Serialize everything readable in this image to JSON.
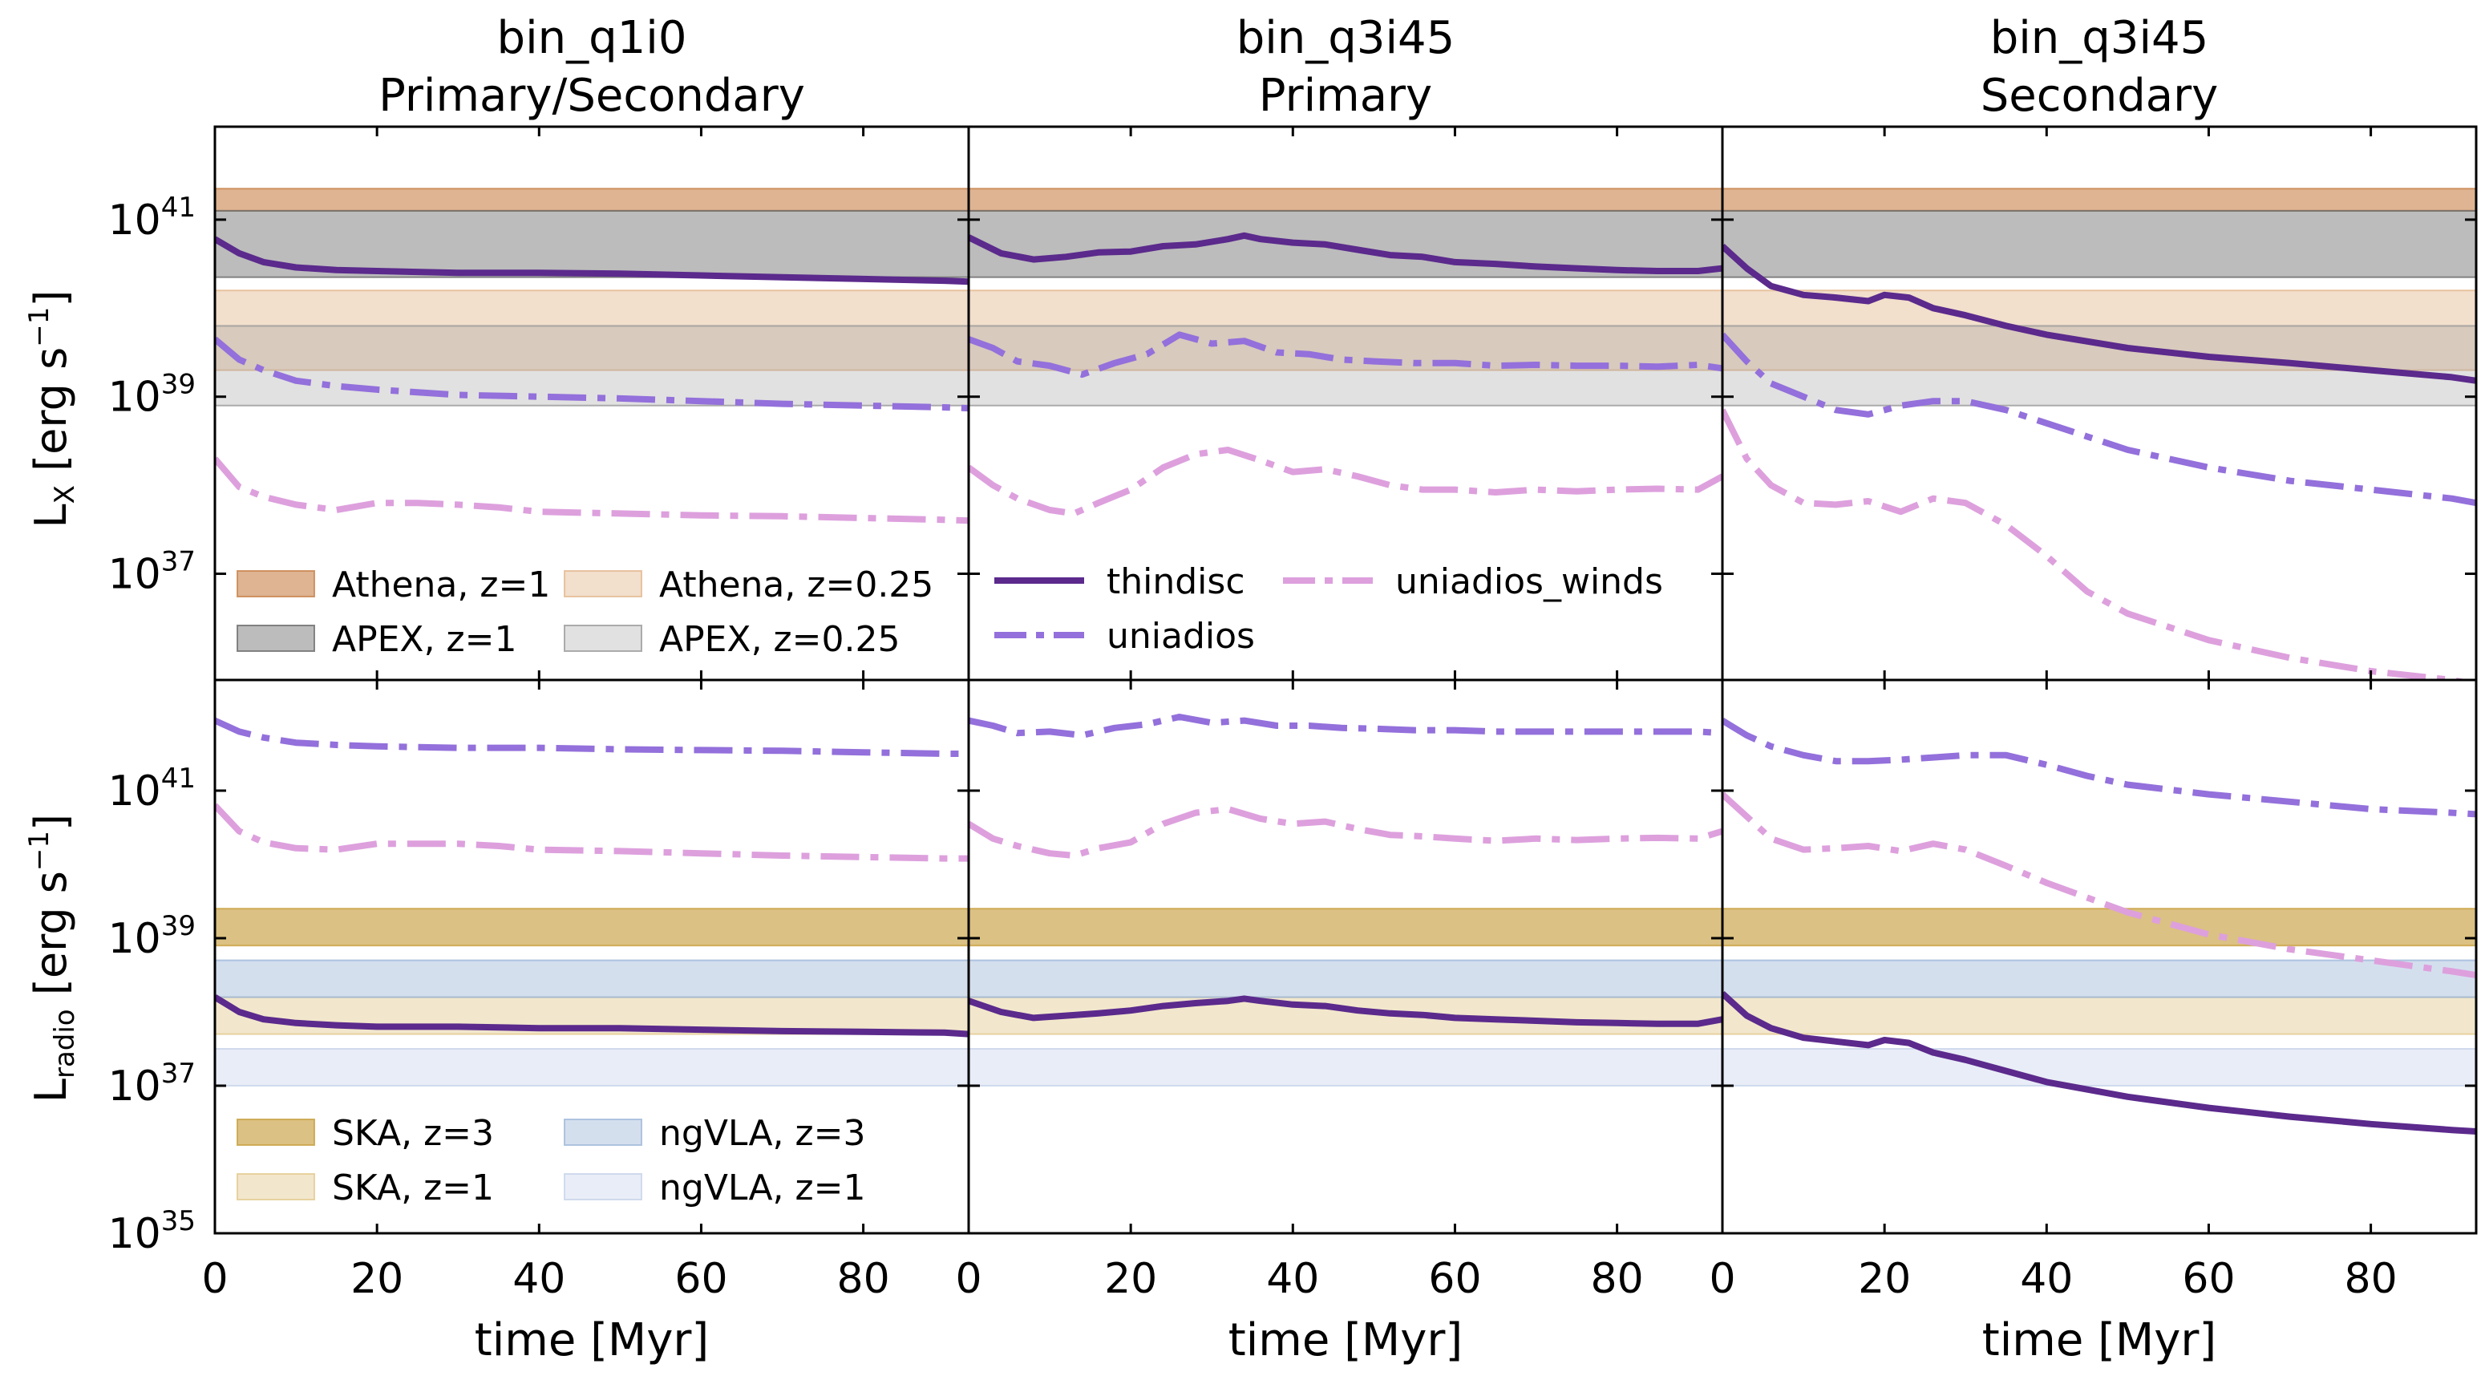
{
  "chart_data": {
    "type": "line",
    "columns": [
      {
        "title_line1": "bin_q1i0",
        "title_line2": "Primary/Secondary"
      },
      {
        "title_line1": "bin_q3i45",
        "title_line2": "Primary"
      },
      {
        "title_line1": "bin_q3i45",
        "title_line2": "Secondary"
      }
    ],
    "x_axis": {
      "label": "time [Myr]",
      "lim": [
        0,
        93
      ],
      "ticks": [
        0,
        20,
        40,
        60,
        80
      ]
    },
    "rows": [
      {
        "key": "xray",
        "ylabel_base": "L",
        "ylabel_sub": "X",
        "ylabel_unit": " [erg s",
        "ylabel_unit_sup": "−1",
        "ylabel_close": "]",
        "ylim_log10": [
          35.8,
          42.05
        ],
        "major_ticks_log10": [
          37,
          39,
          41
        ],
        "bands": [
          {
            "name": "Athena, z=1",
            "range_log10": [
              41.1,
              41.35
            ],
            "color": "#c8824a",
            "opacity": 0.6
          },
          {
            "name": "APEX, z=1",
            "range_log10": [
              40.35,
              41.1
            ],
            "color": "#6b6b6b",
            "opacity": 0.45
          },
          {
            "name": "Athena, z=0.25",
            "range_log10": [
              39.3,
              40.2
            ],
            "color": "#e3b88f",
            "opacity": 0.45
          },
          {
            "name": "APEX, z=0.25",
            "range_log10": [
              38.9,
              39.8
            ],
            "color": "#9a9a9a",
            "opacity": 0.3
          }
        ],
        "legend_position": "lower-left",
        "series_legend": {
          "position": "lower-center",
          "entries": [
            "thindisc",
            "uniadios",
            "uniadios_winds"
          ]
        }
      },
      {
        "key": "radio",
        "ylabel_base": "L",
        "ylabel_sub": "radio",
        "ylabel_unit": " [erg s",
        "ylabel_unit_sup": "−1",
        "ylabel_close": "]",
        "ylim_log10": [
          35.0,
          42.5
        ],
        "major_ticks_log10": [
          35,
          37,
          39,
          41
        ],
        "bands": [
          {
            "name": "SKA, z=3",
            "range_log10": [
              38.9,
              39.4
            ],
            "color": "#c8a040",
            "opacity": 0.65
          },
          {
            "name": "SKA, z=1",
            "range_log10": [
              37.7,
              38.2
            ],
            "color": "#e3c98f",
            "opacity": 0.45
          },
          {
            "name": "ngVLA, z=3",
            "range_log10": [
              38.2,
              38.7
            ],
            "color": "#9fb8d9",
            "opacity": 0.45
          },
          {
            "name": "ngVLA, z=1",
            "range_log10": [
              37.0,
              37.5
            ],
            "color": "#c7d3ea",
            "opacity": 0.4
          }
        ],
        "legend_position": "lower-left"
      }
    ],
    "series_styles": [
      {
        "name": "thindisc",
        "color": "#5b2a8c",
        "dash": "solid"
      },
      {
        "name": "uniadios",
        "color": "#9370db",
        "dash": "dashdot"
      },
      {
        "name": "uniadios_winds",
        "color": "#dda0dd",
        "dash": "dashdot"
      }
    ],
    "series": {
      "xray": [
        {
          "thindisc": {
            "x": [
              0,
              3,
              6,
              10,
              15,
              20,
              30,
              40,
              50,
              60,
              70,
              80,
              85,
              90,
              93
            ],
            "y": [
              40.78,
              40.62,
              40.52,
              40.46,
              40.43,
              40.42,
              40.4,
              40.4,
              40.39,
              40.37,
              40.35,
              40.33,
              40.32,
              40.31,
              40.3
            ]
          },
          "uniadios": {
            "x": [
              0,
              3,
              6,
              10,
              15,
              20,
              30,
              40,
              50,
              60,
              70,
              80,
              90,
              93
            ],
            "y": [
              39.65,
              39.42,
              39.3,
              39.18,
              39.12,
              39.08,
              39.02,
              39.0,
              38.98,
              38.95,
              38.92,
              38.9,
              38.88,
              38.87
            ]
          },
          "uniadios_winds": {
            "x": [
              0,
              3,
              6,
              10,
              15,
              20,
              25,
              30,
              35,
              40,
              50,
              60,
              70,
              80,
              90,
              93
            ],
            "y": [
              38.3,
              37.98,
              37.87,
              37.78,
              37.72,
              37.8,
              37.8,
              37.78,
              37.75,
              37.7,
              37.68,
              37.66,
              37.65,
              37.63,
              37.61,
              37.6
            ]
          }
        },
        {
          "thindisc": {
            "x": [
              0,
              4,
              8,
              12,
              16,
              20,
              24,
              28,
              32,
              34,
              36,
              40,
              44,
              48,
              52,
              56,
              60,
              65,
              70,
              75,
              80,
              85,
              90,
              93
            ],
            "y": [
              40.8,
              40.62,
              40.55,
              40.58,
              40.63,
              40.64,
              40.7,
              40.72,
              40.78,
              40.82,
              40.78,
              40.74,
              40.72,
              40.66,
              40.6,
              40.58,
              40.52,
              40.5,
              40.47,
              40.45,
              40.43,
              40.42,
              40.42,
              40.45
            ]
          },
          "uniadios": {
            "x": [
              0,
              3,
              6,
              10,
              14,
              18,
              22,
              26,
              30,
              34,
              38,
              42,
              46,
              50,
              55,
              60,
              65,
              70,
              75,
              80,
              85,
              90,
              93
            ],
            "y": [
              39.65,
              39.55,
              39.4,
              39.35,
              39.25,
              39.38,
              39.48,
              39.7,
              39.6,
              39.63,
              39.5,
              39.48,
              39.42,
              39.4,
              39.38,
              39.38,
              39.35,
              39.36,
              39.35,
              39.35,
              39.34,
              39.36,
              39.32
            ]
          },
          "uniadios_winds": {
            "x": [
              0,
              3,
              6,
              10,
              13,
              16,
              20,
              24,
              28,
              32,
              36,
              40,
              44,
              48,
              52,
              56,
              60,
              65,
              70,
              75,
              80,
              85,
              90,
              93
            ],
            "y": [
              38.2,
              38.0,
              37.85,
              37.72,
              37.68,
              37.8,
              37.95,
              38.2,
              38.35,
              38.4,
              38.28,
              38.15,
              38.18,
              38.1,
              38.0,
              37.95,
              37.95,
              37.92,
              37.95,
              37.93,
              37.95,
              37.96,
              37.95,
              38.1
            ]
          }
        },
        {
          "thindisc": {
            "x": [
              0,
              3,
              6,
              10,
              14,
              18,
              20,
              23,
              26,
              30,
              35,
              40,
              50,
              60,
              70,
              80,
              90,
              93
            ],
            "y": [
              40.7,
              40.45,
              40.25,
              40.15,
              40.12,
              40.08,
              40.15,
              40.12,
              40.0,
              39.92,
              39.8,
              39.7,
              39.55,
              39.45,
              39.38,
              39.3,
              39.22,
              39.18
            ]
          },
          "uniadios": {
            "x": [
              0,
              3,
              6,
              10,
              14,
              18,
              22,
              26,
              30,
              35,
              40,
              45,
              50,
              60,
              70,
              80,
              90,
              93
            ],
            "y": [
              39.7,
              39.4,
              39.15,
              39.0,
              38.85,
              38.8,
              38.9,
              38.95,
              38.95,
              38.85,
              38.7,
              38.55,
              38.4,
              38.2,
              38.05,
              37.95,
              37.85,
              37.8
            ]
          },
          "uniadios_winds": {
            "x": [
              0,
              3,
              6,
              10,
              14,
              18,
              22,
              26,
              30,
              35,
              40,
              45,
              50,
              60,
              70,
              80,
              90,
              93
            ],
            "y": [
              38.85,
              38.3,
              38.0,
              37.8,
              37.78,
              37.82,
              37.7,
              37.85,
              37.8,
              37.55,
              37.2,
              36.8,
              36.55,
              36.25,
              36.05,
              35.9,
              35.8,
              35.75
            ]
          }
        }
      ],
      "radio": [
        {
          "thindisc": {
            "x": [
              0,
              3,
              6,
              10,
              15,
              20,
              30,
              40,
              50,
              60,
              70,
              80,
              90,
              93
            ],
            "y": [
              38.2,
              38.0,
              37.9,
              37.85,
              37.82,
              37.8,
              37.8,
              37.78,
              37.78,
              37.76,
              37.74,
              37.73,
              37.72,
              37.7
            ]
          },
          "uniadios": {
            "x": [
              0,
              3,
              6,
              10,
              15,
              20,
              30,
              40,
              50,
              60,
              70,
              80,
              90,
              93
            ],
            "y": [
              41.95,
              41.8,
              41.72,
              41.65,
              41.62,
              41.6,
              41.58,
              41.58,
              41.56,
              41.55,
              41.54,
              41.52,
              41.5,
              41.5
            ]
          },
          "uniadios_winds": {
            "x": [
              0,
              3,
              6,
              10,
              15,
              20,
              25,
              30,
              35,
              40,
              50,
              60,
              70,
              80,
              90,
              93
            ],
            "y": [
              40.8,
              40.45,
              40.3,
              40.22,
              40.2,
              40.28,
              40.28,
              40.28,
              40.25,
              40.2,
              40.18,
              40.15,
              40.12,
              40.1,
              40.08,
              40.08
            ]
          }
        },
        {
          "thindisc": {
            "x": [
              0,
              4,
              8,
              12,
              16,
              20,
              24,
              28,
              32,
              34,
              36,
              40,
              44,
              48,
              52,
              56,
              60,
              65,
              70,
              75,
              80,
              85,
              90,
              93
            ],
            "y": [
              38.15,
              38.0,
              37.92,
              37.95,
              37.98,
              38.02,
              38.08,
              38.12,
              38.15,
              38.18,
              38.15,
              38.1,
              38.08,
              38.02,
              37.98,
              37.96,
              37.92,
              37.9,
              37.88,
              37.86,
              37.85,
              37.84,
              37.84,
              37.9
            ]
          },
          "uniadios": {
            "x": [
              0,
              3,
              6,
              10,
              14,
              18,
              22,
              26,
              30,
              34,
              38,
              42,
              46,
              50,
              55,
              60,
              65,
              70,
              75,
              80,
              85,
              90,
              93
            ],
            "y": [
              41.95,
              41.88,
              41.78,
              41.8,
              41.75,
              41.85,
              41.9,
              42.0,
              41.92,
              41.95,
              41.88,
              41.88,
              41.85,
              41.84,
              41.82,
              41.82,
              41.8,
              41.8,
              41.8,
              41.8,
              41.8,
              41.8,
              41.78
            ]
          },
          "uniadios_winds": {
            "x": [
              0,
              3,
              6,
              10,
              13,
              16,
              20,
              24,
              28,
              32,
              36,
              40,
              44,
              48,
              52,
              56,
              60,
              65,
              70,
              75,
              80,
              85,
              90,
              93
            ],
            "y": [
              40.55,
              40.35,
              40.25,
              40.15,
              40.12,
              40.22,
              40.3,
              40.55,
              40.7,
              40.75,
              40.62,
              40.55,
              40.58,
              40.48,
              40.4,
              40.38,
              40.35,
              40.32,
              40.35,
              40.33,
              40.35,
              40.36,
              40.35,
              40.45
            ]
          }
        },
        {
          "thindisc": {
            "x": [
              0,
              3,
              6,
              10,
              14,
              18,
              20,
              23,
              26,
              30,
              35,
              40,
              50,
              60,
              70,
              80,
              90,
              93
            ],
            "y": [
              38.25,
              37.95,
              37.78,
              37.65,
              37.6,
              37.55,
              37.62,
              37.58,
              37.45,
              37.35,
              37.2,
              37.05,
              36.85,
              36.7,
              36.58,
              36.48,
              36.4,
              36.38
            ]
          },
          "uniadios": {
            "x": [
              0,
              3,
              6,
              10,
              14,
              18,
              22,
              26,
              30,
              35,
              40,
              45,
              50,
              60,
              70,
              80,
              90,
              93
            ],
            "y": [
              41.95,
              41.75,
              41.6,
              41.48,
              41.4,
              41.4,
              41.42,
              41.45,
              41.48,
              41.48,
              41.35,
              41.2,
              41.08,
              40.95,
              40.85,
              40.75,
              40.7,
              40.68
            ]
          },
          "uniadios_winds": {
            "x": [
              0,
              3,
              6,
              10,
              14,
              18,
              22,
              26,
              30,
              35,
              40,
              45,
              50,
              60,
              70,
              80,
              90,
              93
            ],
            "y": [
              40.95,
              40.65,
              40.35,
              40.2,
              40.22,
              40.25,
              40.18,
              40.28,
              40.2,
              39.98,
              39.75,
              39.55,
              39.35,
              39.05,
              38.85,
              38.7,
              38.55,
              38.5
            ]
          }
        }
      ]
    }
  }
}
